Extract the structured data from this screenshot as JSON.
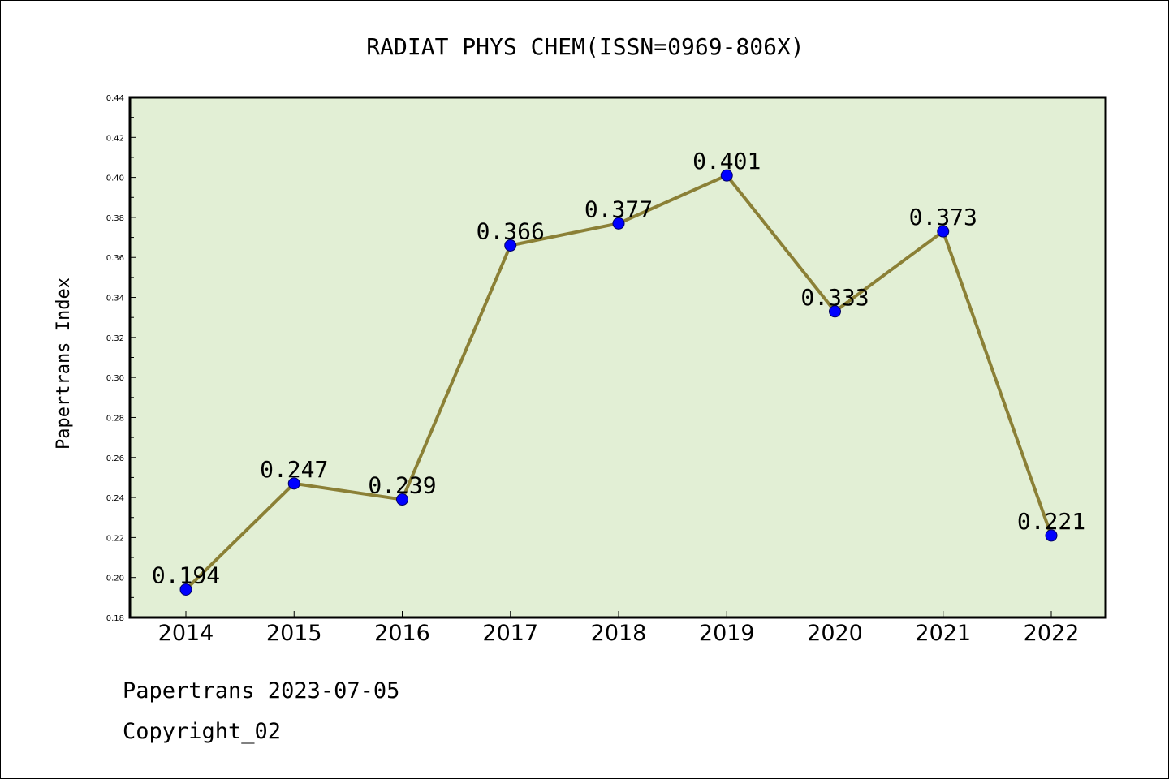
{
  "footer": {
    "line1": "Papertrans 2023-07-05",
    "line2": "Copyright_02"
  },
  "chart_data": {
    "type": "line",
    "title": "RADIAT PHYS CHEM(ISSN=0969-806X)",
    "xlabel": "",
    "ylabel": "Papertrans Index",
    "categories": [
      "2014",
      "2015",
      "2016",
      "2017",
      "2018",
      "2019",
      "2020",
      "2021",
      "2022"
    ],
    "series": [
      {
        "values": [
          0.194,
          0.247,
          0.239,
          0.366,
          0.377,
          0.401,
          0.333,
          0.373,
          0.221
        ]
      }
    ],
    "data_labels": [
      "0.194",
      "0.247",
      "0.239",
      "0.366",
      "0.377",
      "0.401",
      "0.333",
      "0.373",
      "0.221"
    ],
    "ylim": [
      0.18,
      0.44
    ],
    "yticks": [
      "0.18",
      "0.20",
      "0.22",
      "0.24",
      "0.26",
      "0.28",
      "0.30",
      "0.32",
      "0.34",
      "0.36",
      "0.38",
      "0.40",
      "0.42",
      "0.44"
    ],
    "grid": false,
    "legend": "none",
    "colors": {
      "plot_background": "#e2efd5",
      "line": "#8b8036",
      "marker": "#0000ff"
    }
  }
}
